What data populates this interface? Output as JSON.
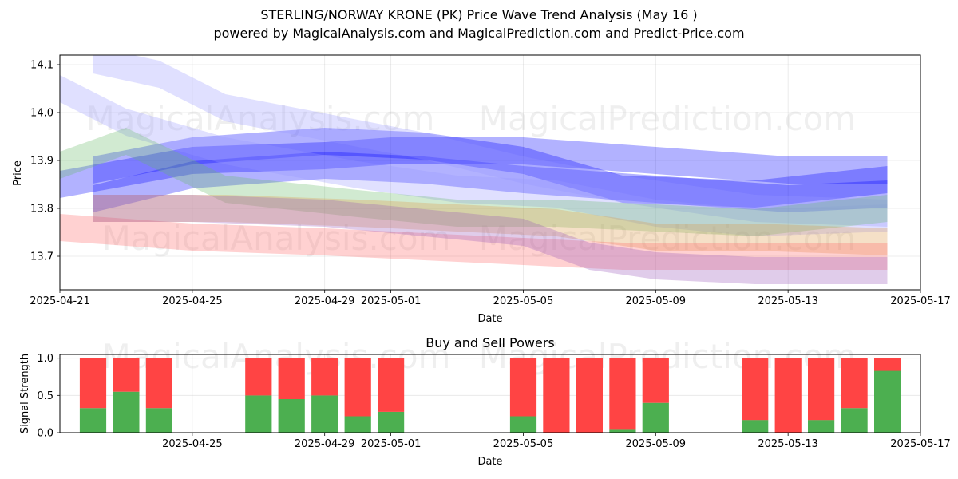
{
  "chart_data": [
    {
      "type": "area",
      "title": "STERLING/NORWAY KRONE (PK) Price Wave Trend Analysis (May 16 )",
      "subtitle": "powered by MagicalAnalysis.com and MagicalPrediction.com and Predict-Price.com",
      "xlabel": "Date",
      "ylabel": "Price",
      "xlim": [
        "2025-04-21",
        "2025-05-17"
      ],
      "ylim": [
        13.63,
        14.12
      ],
      "x_ticks": [
        "2025-04-21",
        "2025-04-25",
        "2025-04-29",
        "2025-05-01",
        "2025-05-05",
        "2025-05-09",
        "2025-05-13",
        "2025-05-17"
      ],
      "y_ticks": [
        "13.7",
        "13.8",
        "13.9",
        "14.0",
        "14.1"
      ],
      "grid": true,
      "watermarks": [
        "MagicalAnalysis.com",
        "MagicalPrediction.com"
      ],
      "series": [
        {
          "name": "blue-band-1",
          "color": "#0000ff",
          "x": [
            "2025-04-21",
            "2025-04-25",
            "2025-04-29",
            "2025-05-01",
            "2025-05-05",
            "2025-05-09",
            "2025-05-13",
            "2025-05-16"
          ],
          "values": [
            13.85,
            13.9,
            13.91,
            13.92,
            13.92,
            13.9,
            13.88,
            13.88
          ]
        },
        {
          "name": "blue-band-2",
          "color": "#0000ff",
          "x": [
            "2025-04-22",
            "2025-04-25",
            "2025-04-29",
            "2025-05-02",
            "2025-05-05",
            "2025-05-09",
            "2025-05-13",
            "2025-05-16"
          ],
          "values": [
            13.82,
            13.87,
            13.89,
            13.88,
            13.86,
            13.84,
            13.82,
            13.83
          ]
        },
        {
          "name": "blue-band-3",
          "color": "#0000ff",
          "x": [
            "2025-04-22",
            "2025-04-25",
            "2025-04-29",
            "2025-05-02",
            "2025-05-05",
            "2025-05-08",
            "2025-05-12",
            "2025-05-16"
          ],
          "values": [
            13.88,
            13.92,
            13.94,
            13.93,
            13.9,
            13.84,
            13.83,
            13.86
          ]
        },
        {
          "name": "lavender-band-1",
          "color": "#9999ff",
          "x": [
            "2025-04-22",
            "2025-04-24",
            "2025-04-26",
            "2025-04-29",
            "2025-05-02",
            "2025-05-05",
            "2025-05-08",
            "2025-05-12",
            "2025-05-16"
          ],
          "values": [
            14.11,
            14.08,
            14.01,
            13.97,
            13.93,
            13.88,
            13.84,
            13.8,
            13.79
          ]
        },
        {
          "name": "lavender-band-2",
          "color": "#9999ff",
          "x": [
            "2025-04-21",
            "2025-04-23",
            "2025-04-26",
            "2025-04-30",
            "2025-05-03",
            "2025-05-06",
            "2025-05-09",
            "2025-05-12",
            "2025-05-16"
          ],
          "values": [
            14.05,
            13.98,
            13.92,
            13.87,
            13.84,
            13.83,
            13.79,
            13.77,
            13.78
          ]
        },
        {
          "name": "green-band-1",
          "color": "#66bb66",
          "x": [
            "2025-04-21",
            "2025-04-23",
            "2025-04-26",
            "2025-04-30",
            "2025-05-03",
            "2025-05-06",
            "2025-05-09",
            "2025-05-12",
            "2025-05-16"
          ],
          "values": [
            13.89,
            13.94,
            13.84,
            13.81,
            13.79,
            13.79,
            13.78,
            13.77,
            13.8
          ]
        },
        {
          "name": "orange-band-1",
          "color": "#dd9944",
          "x": [
            "2025-04-22",
            "2025-04-26",
            "2025-04-30",
            "2025-05-03",
            "2025-05-06",
            "2025-05-09",
            "2025-05-12",
            "2025-05-16"
          ],
          "values": [
            13.8,
            13.8,
            13.79,
            13.78,
            13.77,
            13.74,
            13.74,
            13.73
          ]
        },
        {
          "name": "red-band-1",
          "color": "#ff6666",
          "x": [
            "2025-04-21",
            "2025-04-25",
            "2025-04-29",
            "2025-05-02",
            "2025-05-05",
            "2025-05-08",
            "2025-05-12",
            "2025-05-16"
          ],
          "values": [
            13.76,
            13.74,
            13.73,
            13.72,
            13.71,
            13.7,
            13.7,
            13.7
          ]
        },
        {
          "name": "purple-band-1",
          "color": "#9955bb",
          "x": [
            "2025-04-22",
            "2025-04-25",
            "2025-04-29",
            "2025-05-02",
            "2025-05-05",
            "2025-05-07",
            "2025-05-09",
            "2025-05-12",
            "2025-05-16"
          ],
          "values": [
            13.8,
            13.8,
            13.79,
            13.77,
            13.75,
            13.7,
            13.68,
            13.67,
            13.67
          ]
        }
      ]
    },
    {
      "type": "bar",
      "title": "Buy and Sell Powers",
      "xlabel": "Date",
      "ylabel": "Signal Strength",
      "xlim": [
        "2025-04-21",
        "2025-05-17"
      ],
      "ylim": [
        0,
        1.05
      ],
      "x_ticks": [
        "2025-04-25",
        "2025-04-29",
        "2025-05-01",
        "2025-05-05",
        "2025-05-09",
        "2025-05-13",
        "2025-05-17"
      ],
      "y_ticks": [
        "0.0",
        "0.5",
        "1.0"
      ],
      "grid": true,
      "watermarks": [
        "MagicalAnalysis.com",
        "MagicalPrediction.com"
      ],
      "categories": [
        "2025-04-22",
        "2025-04-23",
        "2025-04-24",
        "2025-04-27",
        "2025-04-28",
        "2025-04-29",
        "2025-04-30",
        "2025-05-01",
        "2025-05-05",
        "2025-05-06",
        "2025-05-07",
        "2025-05-08",
        "2025-05-09",
        "2025-05-12",
        "2025-05-13",
        "2025-05-14",
        "2025-05-15",
        "2025-05-16"
      ],
      "series": [
        {
          "name": "Buy",
          "color": "#4caf50",
          "values": [
            0.33,
            0.55,
            0.33,
            0.5,
            0.45,
            0.5,
            0.22,
            0.28,
            0.22,
            0.0,
            0.0,
            0.05,
            0.4,
            0.17,
            0.0,
            0.17,
            0.33,
            0.83
          ]
        },
        {
          "name": "Sell",
          "color": "#ff4444",
          "values": [
            0.67,
            0.45,
            0.67,
            0.5,
            0.55,
            0.5,
            0.78,
            0.72,
            0.78,
            1.0,
            1.0,
            0.95,
            0.6,
            0.83,
            1.0,
            0.83,
            0.67,
            0.17
          ]
        }
      ]
    }
  ]
}
